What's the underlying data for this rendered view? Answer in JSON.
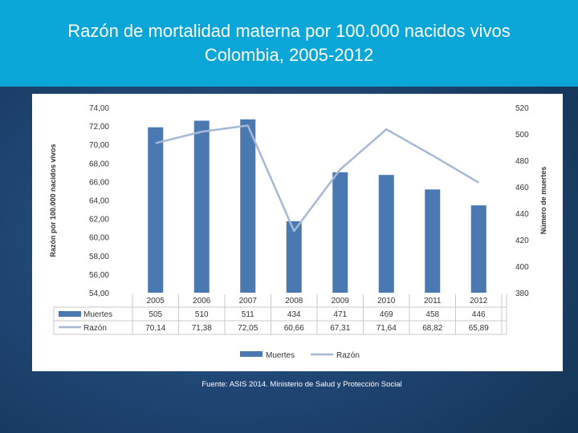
{
  "title": {
    "line1": "Razón de mortalidad materna por 100.000 nacidos vivos",
    "line2": "Colombia, 2005-2012"
  },
  "source": "Fuente: ASIS 2014. Ministerio de Salud y Protección Social",
  "colors": {
    "header": "#0aa6d8",
    "bars": "#4a78b0",
    "line": "#a6b8d6"
  },
  "chart_data": {
    "type": "bar",
    "categories": [
      "2005",
      "2006",
      "2007",
      "2008",
      "2009",
      "2010",
      "2011",
      "2012"
    ],
    "series": [
      {
        "name": "Muertes",
        "type": "bar",
        "axis": "right",
        "values": [
          505,
          510,
          511,
          434,
          471,
          469,
          458,
          446
        ],
        "labels": [
          "505",
          "510",
          "511",
          "434",
          "471",
          "469",
          "458",
          "446"
        ]
      },
      {
        "name": "Razón",
        "type": "line",
        "axis": "left",
        "values": [
          70.14,
          71.38,
          72.05,
          60.66,
          67.31,
          71.64,
          68.82,
          65.89
        ],
        "labels": [
          "70,14",
          "71,38",
          "72,05",
          "60,66",
          "67,31",
          "71,64",
          "68,82",
          "65,89"
        ]
      }
    ],
    "ylabel": "Razón por 100.000 nacidos vivos",
    "y2label": "Número de muertes",
    "ylim": [
      54,
      74
    ],
    "y2lim": [
      380,
      520
    ],
    "yticks": [
      "74,00",
      "72,00",
      "70,00",
      "68,00",
      "66,00",
      "64,00",
      "62,00",
      "60,00",
      "58,00",
      "56,00",
      "54,00"
    ],
    "y2ticks": [
      "520",
      "500",
      "480",
      "460",
      "440",
      "420",
      "400",
      "380"
    ],
    "legend": [
      "Muertes",
      "Razón"
    ],
    "legend_position": "bottom"
  }
}
